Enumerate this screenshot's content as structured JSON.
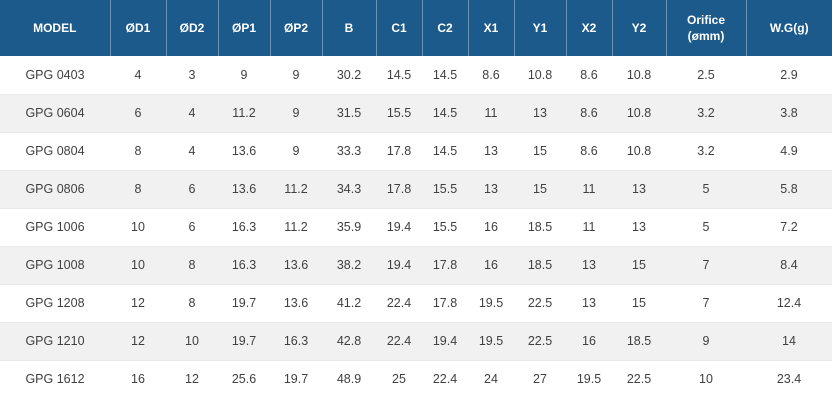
{
  "chart_data": {
    "type": "table",
    "title": "",
    "columns": [
      "MODEL",
      "ØD1",
      "ØD2",
      "ØP1",
      "ØP2",
      "B",
      "C1",
      "C2",
      "X1",
      "Y1",
      "X2",
      "Y2",
      "Orifice\n(ømm)",
      "W.G(g)"
    ],
    "rows": [
      [
        "GPG 0403",
        "4",
        "3",
        "9",
        "9",
        "30.2",
        "14.5",
        "14.5",
        "8.6",
        "10.8",
        "8.6",
        "10.8",
        "2.5",
        "2.9"
      ],
      [
        "GPG 0604",
        "6",
        "4",
        "11.2",
        "9",
        "31.5",
        "15.5",
        "14.5",
        "11",
        "13",
        "8.6",
        "10.8",
        "3.2",
        "3.8"
      ],
      [
        "GPG 0804",
        "8",
        "4",
        "13.6",
        "9",
        "33.3",
        "17.8",
        "14.5",
        "13",
        "15",
        "8.6",
        "10.8",
        "3.2",
        "4.9"
      ],
      [
        "GPG 0806",
        "8",
        "6",
        "13.6",
        "11.2",
        "34.3",
        "17.8",
        "15.5",
        "13",
        "15",
        "11",
        "13",
        "5",
        "5.8"
      ],
      [
        "GPG 1006",
        "10",
        "6",
        "16.3",
        "11.2",
        "35.9",
        "19.4",
        "15.5",
        "16",
        "18.5",
        "11",
        "13",
        "5",
        "7.2"
      ],
      [
        "GPG 1008",
        "10",
        "8",
        "16.3",
        "13.6",
        "38.2",
        "19.4",
        "17.8",
        "16",
        "18.5",
        "13",
        "15",
        "7",
        "8.4"
      ],
      [
        "GPG 1208",
        "12",
        "8",
        "19.7",
        "13.6",
        "41.2",
        "22.4",
        "17.8",
        "19.5",
        "22.5",
        "13",
        "15",
        "7",
        "12.4"
      ],
      [
        "GPG 1210",
        "12",
        "10",
        "19.7",
        "16.3",
        "42.8",
        "22.4",
        "19.4",
        "19.5",
        "22.5",
        "16",
        "18.5",
        "9",
        "14"
      ],
      [
        "GPG 1612",
        "16",
        "12",
        "25.6",
        "19.7",
        "48.9",
        "25",
        "22.4",
        "24",
        "27",
        "19.5",
        "22.5",
        "10",
        "23.4"
      ]
    ]
  },
  "colors": {
    "header_bg": "#1c5a8c",
    "header_text": "#ffffff",
    "row_alt_bg": "#f1f1f1",
    "body_text": "#404040"
  }
}
